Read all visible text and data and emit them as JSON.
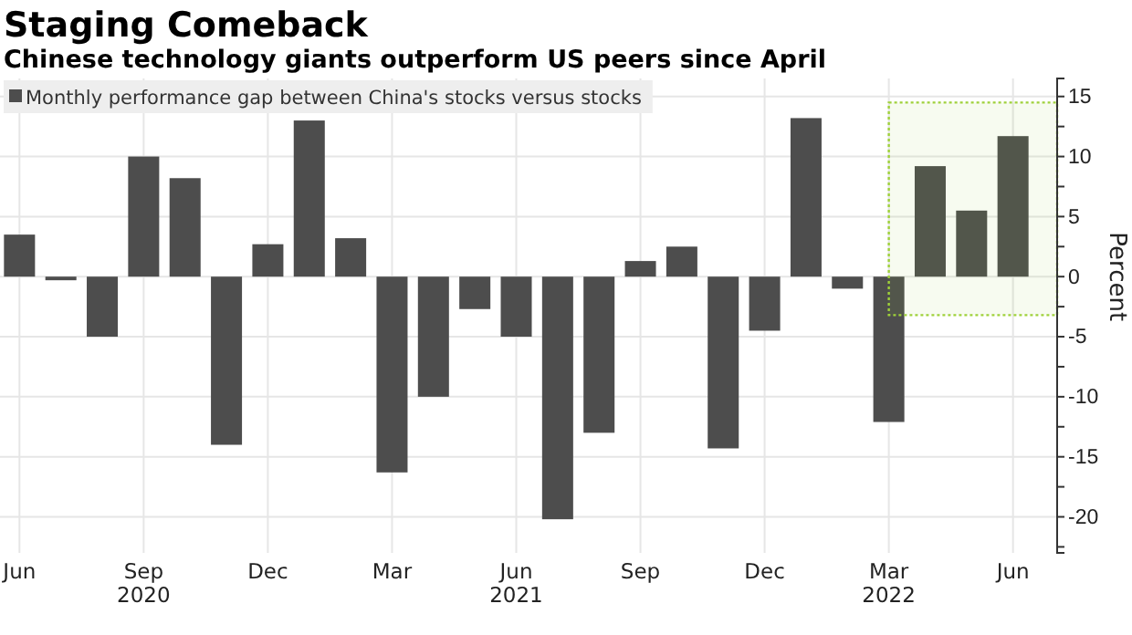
{
  "chart_data": {
    "type": "bar",
    "title": "Staging Comeback",
    "subtitle": "Chinese technology giants outperform US peers since April",
    "ylabel": "Percent",
    "categories": [
      "Jun",
      null,
      null,
      "Sep\n2020",
      null,
      null,
      "Dec",
      null,
      null,
      "Mar",
      null,
      null,
      "Jun\n2021",
      null,
      null,
      "Sep",
      null,
      null,
      "Dec",
      null,
      null,
      "Mar\n2022",
      null,
      null,
      "Jun"
    ],
    "series": [
      {
        "name": "Monthly performance gap between China's stocks versus stocks",
        "color": "#4d4d4d",
        "values": [
          3.5,
          -0.3,
          -5,
          10,
          8.2,
          -14,
          2.7,
          13,
          3.2,
          -16.3,
          -10,
          -2.7,
          -5,
          -20.2,
          -13,
          1.3,
          2.5,
          -14.3,
          -4.5,
          13.2,
          -1,
          -12.1,
          9.2,
          5.5,
          11.7
        ]
      }
    ],
    "ylim": [
      -23,
      16.5
    ],
    "yticks": [
      {
        "value": -22.5,
        "label": null
      },
      -20,
      {
        "value": -17.5,
        "label": null
      },
      -15,
      {
        "value": -12.5,
        "label": null
      },
      -10,
      {
        "value": -7.5,
        "label": null
      },
      -5,
      {
        "value": -2.5,
        "label": null
      },
      0,
      {
        "value": 2.5,
        "label": null
      },
      5,
      {
        "value": 7.5,
        "label": null
      },
      10,
      {
        "value": 12.5,
        "label": null
      },
      15
    ],
    "bands": [
      {
        "axis": "y",
        "from": -3.2,
        "to": 14.5,
        "color": "#9fd13a"
      }
    ],
    "grid": true,
    "legend": "top left"
  }
}
